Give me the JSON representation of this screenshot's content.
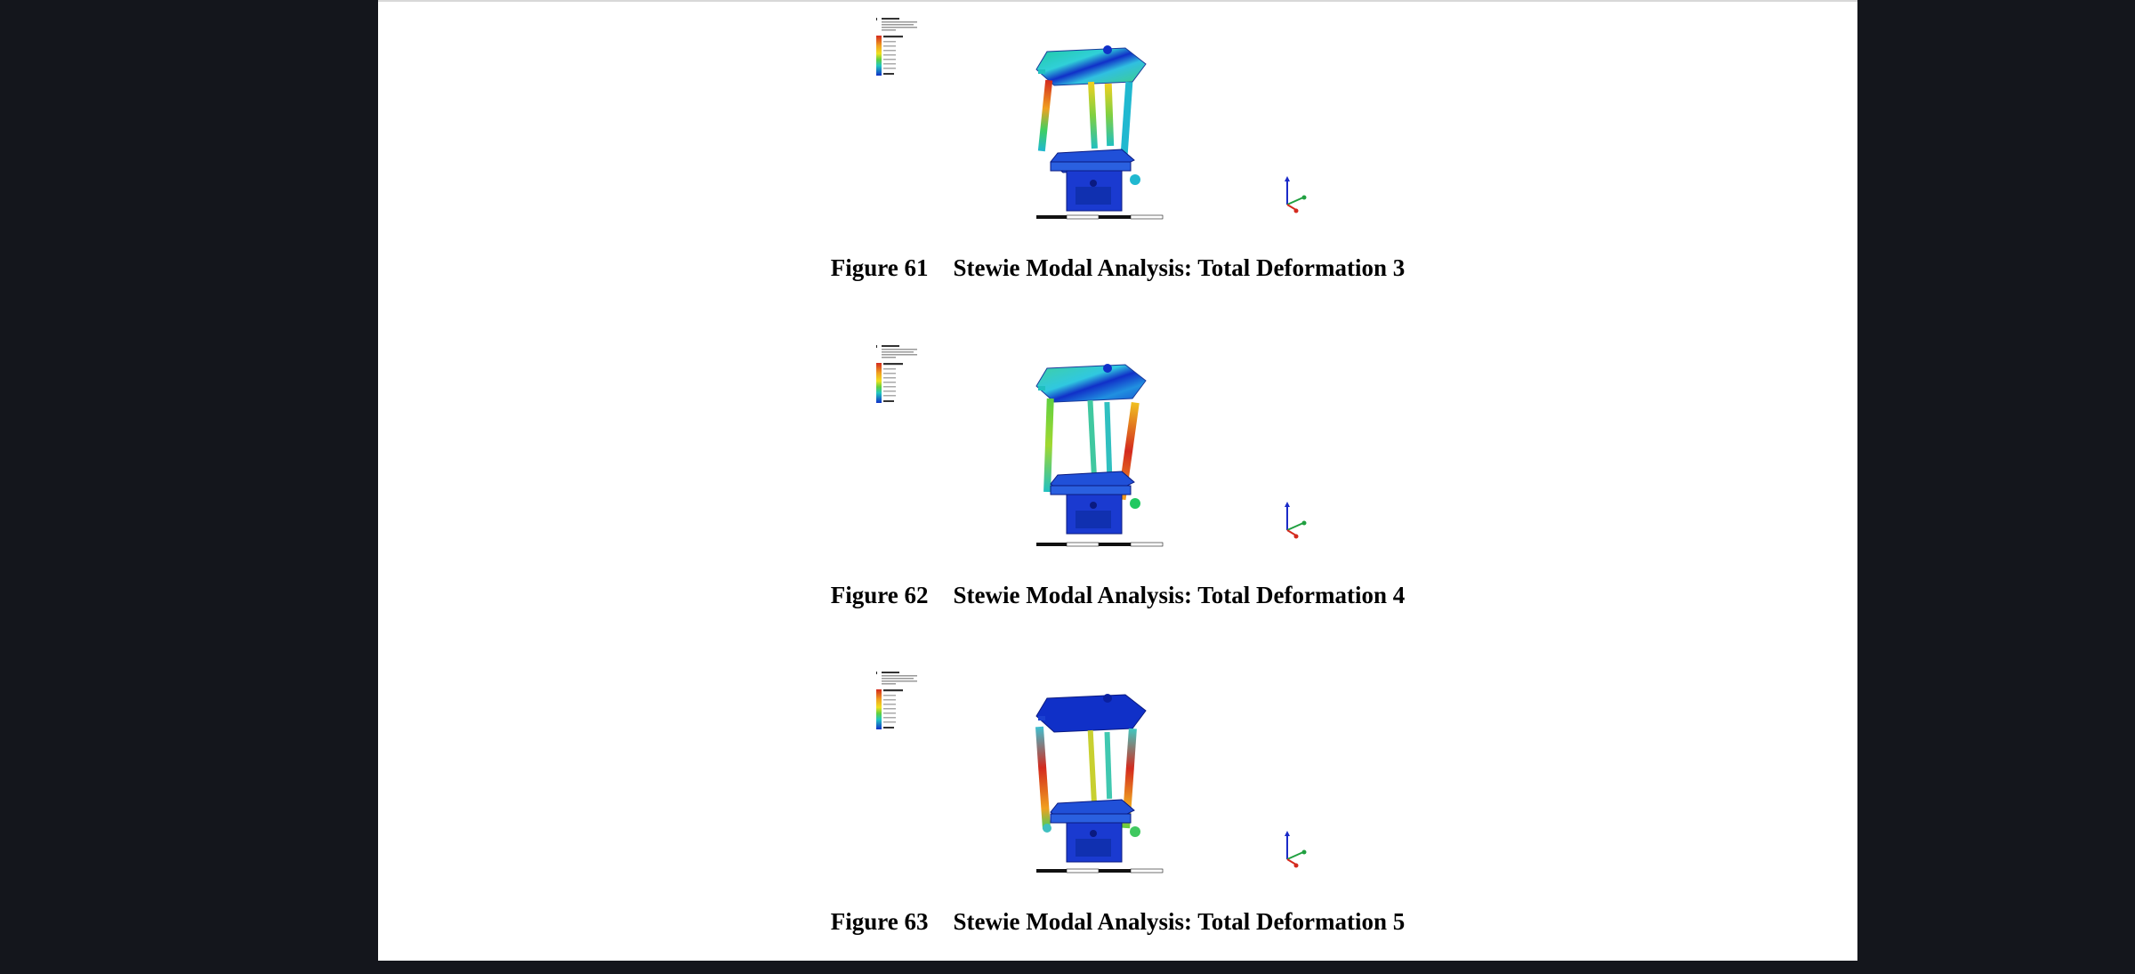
{
  "figures": [
    {
      "number": "Figure 61",
      "title": "Stewie Modal Analysis:  Total Deformation 3"
    },
    {
      "number": "Figure 62",
      "title": "Stewie Modal Analysis:  Total Deformation 4"
    },
    {
      "number": "Figure 63",
      "title": "Stewie Modal Analysis:  Total Deformation 5"
    }
  ],
  "palette": {
    "viewer_background": "#14161c",
    "page_background": "#ffffff",
    "deform_max": "#d42a1e",
    "deform_mid": "#f0e020",
    "deform_low": "#22c8c0",
    "deform_min": "#1030c8"
  }
}
